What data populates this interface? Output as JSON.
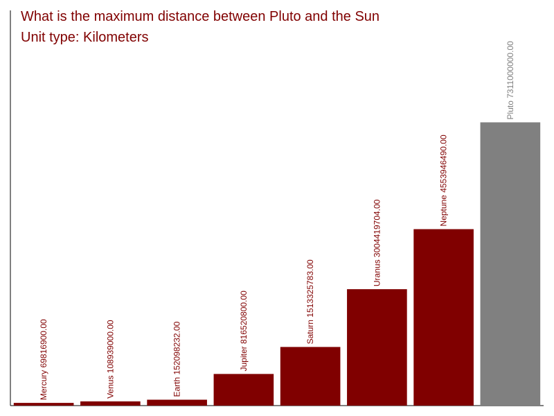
{
  "chart_data": {
    "type": "bar",
    "title": "What is the maximum distance between Pluto and the Sun",
    "subtitle": "Unit type: Kilometers",
    "categories": [
      "Mercury",
      "Venus",
      "Earth",
      "Jupiter",
      "Saturn",
      "Uranus",
      "Neptune",
      "Pluto"
    ],
    "values": [
      69816900,
      108939000,
      152098232,
      816520800,
      1513325783,
      3004419704,
      4553946490,
      7311000000
    ],
    "value_labels": [
      "69816900.00",
      "108939000.00",
      "152098232.00",
      "816520800.00",
      "1513325783.00",
      "3004419704.00",
      "4553946490.00",
      "7311000000.00"
    ],
    "colors": [
      "#800000",
      "#800000",
      "#800000",
      "#800000",
      "#800000",
      "#800000",
      "#800000",
      "#808080"
    ],
    "ylim": [
      0,
      10200000000
    ]
  }
}
